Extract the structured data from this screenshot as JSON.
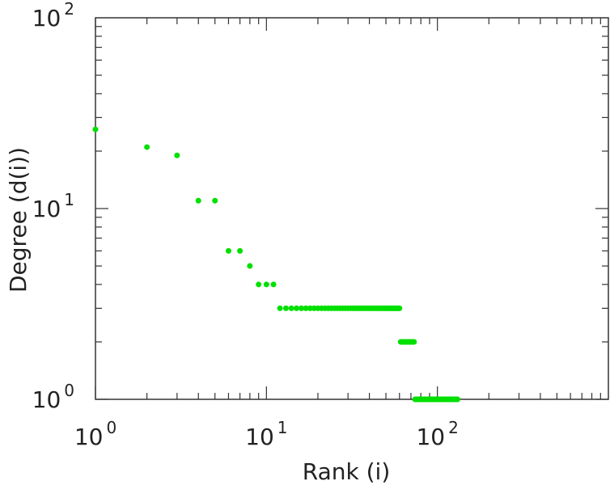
{
  "chart_data": {
    "type": "scatter",
    "title": "",
    "xlabel": "Rank (i)",
    "ylabel": "Degree (d(i))",
    "xscale": "log",
    "yscale": "log",
    "xlim": [
      1,
      1000
    ],
    "ylim": [
      1,
      100
    ],
    "x_ticks": [
      {
        "base": "10",
        "exp": "0",
        "value": 1
      },
      {
        "base": "10",
        "exp": "1",
        "value": 10
      },
      {
        "base": "10",
        "exp": "2",
        "value": 100
      }
    ],
    "y_ticks": [
      {
        "base": "10",
        "exp": "0",
        "value": 1
      },
      {
        "base": "10",
        "exp": "1",
        "value": 10
      },
      {
        "base": "10",
        "exp": "2",
        "value": 100
      }
    ],
    "grid": false,
    "marker_color": "#00e000",
    "groups": [
      {
        "x": [
          1
        ],
        "y": 26
      },
      {
        "x": [
          2
        ],
        "y": 21
      },
      {
        "x": [
          3
        ],
        "y": 19
      },
      {
        "x": [
          4,
          5
        ],
        "y": 11
      },
      {
        "x": [
          6,
          7
        ],
        "y": 6
      },
      {
        "x": [
          8
        ],
        "y": 5
      },
      {
        "x": [
          9,
          10,
          11
        ],
        "y": 4
      },
      {
        "x_range": [
          12,
          60
        ],
        "y": 3
      },
      {
        "x_range": [
          61,
          73
        ],
        "y": 2
      },
      {
        "x_range": [
          74,
          131
        ],
        "y": 1
      }
    ]
  }
}
